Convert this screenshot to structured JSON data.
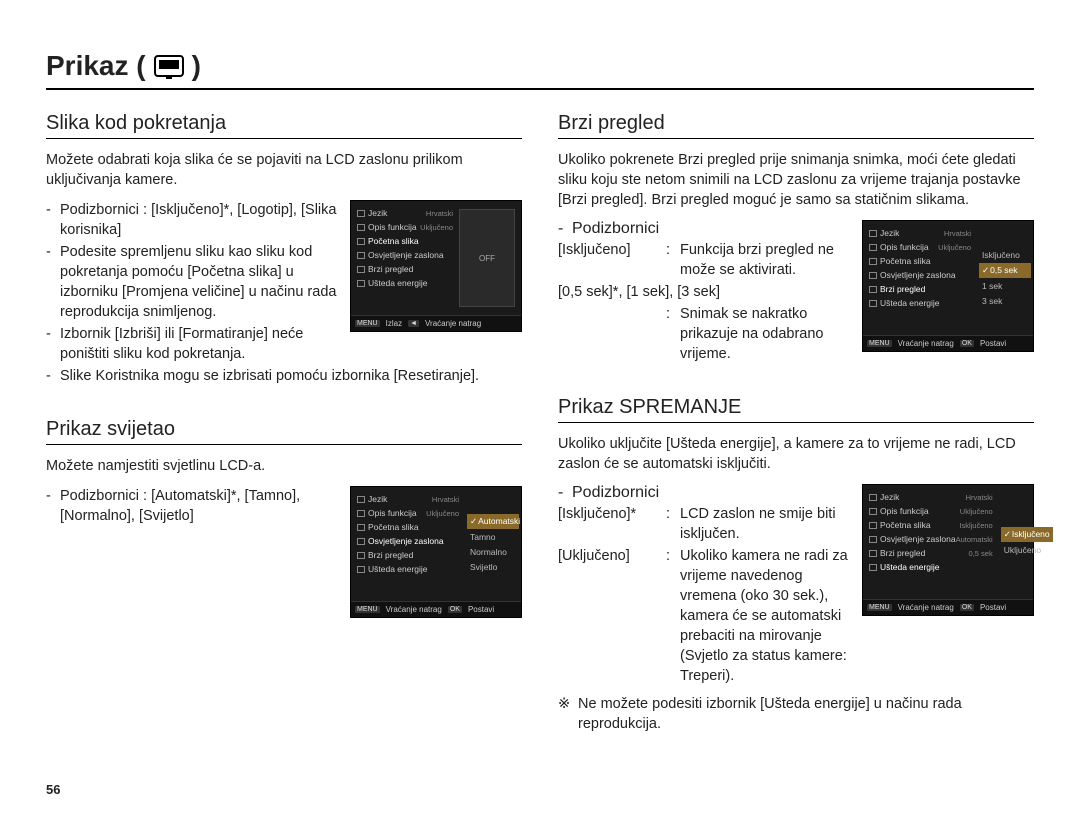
{
  "pageTitle": "Prikaz (",
  "pageTitleClose": ")",
  "pageNumber": "56",
  "left": {
    "sec1": {
      "title": "Slika kod pokretanja",
      "intro": "Možete odabrati koja slika će se pojaviti na LCD zaslonu prilikom uključivanja kamere.",
      "bullets": [
        "Podizbornici : [Isključeno]*, [Logotip], [Slika korisnika]",
        "Podesite spremljenu sliku kao sliku kod pokretanja pomoću [Početna slika] u izborniku [Promjena veličine] u načinu rada reprodukcija snimljenog.",
        "Izbornik [Izbriši] ili [Formatiranje] neće poništiti sliku kod pokretanja.",
        "Slike Koristnika mogu se izbrisati pomoću izbornika [Resetiranje]."
      ],
      "screenshot": {
        "menu": [
          {
            "label": "Jezik",
            "val": "Hrvatski"
          },
          {
            "label": "Opis funkcija",
            "val": "Uključeno"
          },
          {
            "label": "Početna slika",
            "val": "",
            "active": true
          },
          {
            "label": "Osvjetljenje zaslona",
            "val": ""
          },
          {
            "label": "Brzi pregled",
            "val": ""
          },
          {
            "label": "Ušteda energije",
            "val": ""
          }
        ],
        "previewLabel": "OFF",
        "footer": [
          {
            "btn": "MENU",
            "txt": "Izlaz"
          },
          {
            "btn": "◄",
            "txt": "Vraćanje natrag"
          }
        ]
      }
    },
    "sec2": {
      "title": "Prikaz svijetao",
      "intro": "Možete namjestiti svjetlinu LCD-a.",
      "bullets": [
        "Podizbornici : [Automatski]*, [Tamno], [Normalno], [Svijetlo]"
      ],
      "screenshot": {
        "menu": [
          {
            "label": "Jezik",
            "val": "Hrvatski"
          },
          {
            "label": "Opis funkcija",
            "val": "Uključeno"
          },
          {
            "label": "Početna slika",
            "val": ""
          },
          {
            "label": "Osvjetljenje zaslona",
            "val": "",
            "active": true
          },
          {
            "label": "Brzi pregled",
            "val": ""
          },
          {
            "label": "Ušteda energije",
            "val": ""
          }
        ],
        "sub": [
          {
            "label": "Automatski",
            "sel": true,
            "check": true
          },
          {
            "label": "Tamno"
          },
          {
            "label": "Normalno"
          },
          {
            "label": "Svijetlo"
          }
        ],
        "footer": [
          {
            "btn": "MENU",
            "txt": "Vraćanje natrag"
          },
          {
            "btn": "OK",
            "txt": "Postavi"
          }
        ]
      }
    }
  },
  "right": {
    "sec1": {
      "title": "Brzi pregled",
      "intro": "Ukoliko pokrenete Brzi pregled prije snimanja snimka, moći ćete gledati sliku koju ste netom snimili na LCD zaslonu za vrijeme trajanja postavke [Brzi pregled]. Brzi pregled moguć je samo sa statičnim slikama.",
      "subHeader": "Podizbornici",
      "kv": [
        {
          "k": "[Isključeno]",
          "v": "Funkcija brzi pregled ne može se aktivirati."
        },
        {
          "k": "[0,5 sek]*, [1 sek], [3 sek]",
          "v": ""
        },
        {
          "k": "",
          "v": "Snimak se nakratko prikazuje na odabrano vrijeme."
        }
      ],
      "screenshot": {
        "menu": [
          {
            "label": "Jezik",
            "val": "Hrvatski"
          },
          {
            "label": "Opis funkcija",
            "val": "Uključeno"
          },
          {
            "label": "Početna slika",
            "val": ""
          },
          {
            "label": "Osvjetljenje zaslona",
            "val": ""
          },
          {
            "label": "Brzi pregled",
            "val": "",
            "active": true
          },
          {
            "label": "Ušteda energije",
            "val": ""
          }
        ],
        "sub": [
          {
            "label": "Isključeno"
          },
          {
            "label": "0,5 sek",
            "sel": true,
            "check": true
          },
          {
            "label": "1 sek"
          },
          {
            "label": "3 sek"
          }
        ],
        "footer": [
          {
            "btn": "MENU",
            "txt": "Vraćanje natrag"
          },
          {
            "btn": "OK",
            "txt": "Postavi"
          }
        ]
      }
    },
    "sec2": {
      "title": "Prikaz SPREMANJE",
      "intro": "Ukoliko uključite [Ušteda energije], a kamere za to vrijeme ne radi, LCD zaslon će se automatski isključiti.",
      "subHeader": "Podizbornici",
      "kv": [
        {
          "k": "[Isključeno]*",
          "v": "LCD zaslon ne smije biti isključen."
        },
        {
          "k": "[Uključeno]",
          "v": "Ukoliko kamera ne radi za vrijeme navedenog vremena (oko 30 sek.), kamera će se automatski prebaciti na mirovanje (Svjetlo za status kamere: Treperi)."
        }
      ],
      "note": "Ne možete podesiti izbornik [Ušteda energije] u načinu rada reprodukcija.",
      "screenshot": {
        "menu": [
          {
            "label": "Jezik",
            "val": "Hrvatski"
          },
          {
            "label": "Opis funkcija",
            "val": "Uključeno"
          },
          {
            "label": "Početna slika",
            "val": "Isključeno"
          },
          {
            "label": "Osvjetljenje zaslona",
            "val": "Automatski"
          },
          {
            "label": "Brzi pregled",
            "val": "0,5 sek"
          },
          {
            "label": "Ušteda energije",
            "val": "",
            "active": true
          }
        ],
        "sub": [
          {
            "label": "Isključeno",
            "sel": true,
            "check": true
          },
          {
            "label": "Uključeno"
          }
        ],
        "footer": [
          {
            "btn": "MENU",
            "txt": "Vraćanje natrag"
          },
          {
            "btn": "OK",
            "txt": "Postavi"
          }
        ]
      }
    }
  }
}
